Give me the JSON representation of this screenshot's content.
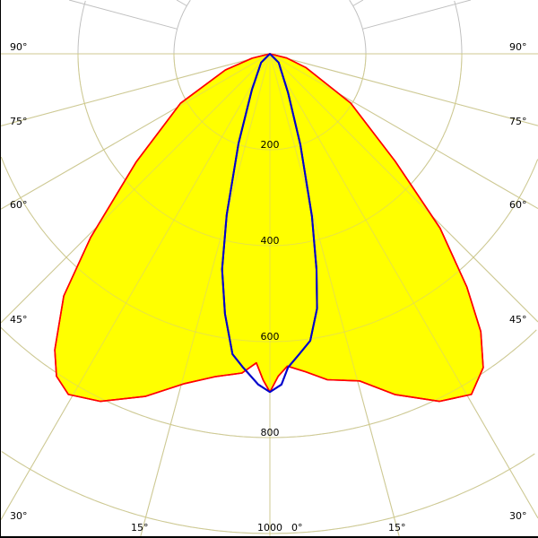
{
  "chart_data": {
    "type": "polar",
    "title": "",
    "radial_ticks": [
      200,
      400,
      600,
      800,
      1000
    ],
    "radial_tick_labels": [
      "200",
      "400",
      "600",
      "800",
      "1000"
    ],
    "rlim": [
      0,
      1000
    ],
    "angle_step_deg": 15,
    "angle_labels": [
      {
        "angle": -90,
        "label": "90°"
      },
      {
        "angle": 90,
        "label": "90°"
      },
      {
        "angle": -75,
        "label": "75°"
      },
      {
        "angle": 75,
        "label": "75°"
      },
      {
        "angle": -60,
        "label": "60°"
      },
      {
        "angle": 60,
        "label": "60°"
      },
      {
        "angle": -45,
        "label": "45°"
      },
      {
        "angle": 45,
        "label": "45°"
      },
      {
        "angle": -30,
        "label": "30°"
      },
      {
        "angle": 30,
        "label": "30°"
      },
      {
        "angle": -15,
        "label": "15°"
      },
      {
        "angle": 15,
        "label": "15°"
      },
      {
        "angle": 0,
        "label": "0°"
      }
    ],
    "grid": true,
    "colors": {
      "grid": "#c0c0c0",
      "fill": "#ffff00",
      "series_red": "#ff0000",
      "series_blue": "#0000cc"
    },
    "series": [
      {
        "color": "#ff0000",
        "filled": true,
        "points": [
          [
            -90,
            0
          ],
          [
            -76,
            38
          ],
          [
            -70,
            99
          ],
          [
            -61,
            213
          ],
          [
            -51,
            359
          ],
          [
            -44.3,
            535
          ],
          [
            -40.4,
            663
          ],
          [
            -36,
            763
          ],
          [
            -33.5,
            806
          ],
          [
            -30.6,
            825
          ],
          [
            -26,
            806
          ],
          [
            -20,
            760
          ],
          [
            -14.5,
            710
          ],
          [
            -9.5,
            682
          ],
          [
            -5,
            668
          ],
          [
            -2.5,
            645
          ],
          [
            -1.2,
            680
          ],
          [
            0,
            705
          ],
          [
            1.5,
            672
          ],
          [
            3.2,
            652
          ],
          [
            6.4,
            667
          ],
          [
            10,
            690
          ],
          [
            15.3,
            707
          ],
          [
            20.2,
            757
          ],
          [
            26,
            806
          ],
          [
            30.6,
            825
          ],
          [
            34.2,
            791
          ],
          [
            37.2,
            727
          ],
          [
            40.2,
            636
          ],
          [
            44.3,
            508
          ],
          [
            49.4,
            344
          ],
          [
            58.6,
            197
          ],
          [
            69,
            80
          ],
          [
            76,
            36
          ],
          [
            90,
            0
          ]
        ]
      },
      {
        "color": "#0000cc",
        "filled": false,
        "points": [
          [
            -90,
            0
          ],
          [
            -45,
            26
          ],
          [
            -26.6,
            84
          ],
          [
            -19.3,
            198
          ],
          [
            -15,
            348
          ],
          [
            -12.5,
            460
          ],
          [
            -9.8,
            550
          ],
          [
            -7.1,
            631
          ],
          [
            -4.9,
            656
          ],
          [
            -2,
            690
          ],
          [
            0,
            705
          ],
          [
            2,
            690
          ],
          [
            3.3,
            655
          ],
          [
            5.5,
            630
          ],
          [
            8,
            604
          ],
          [
            10.5,
            540
          ],
          [
            12.2,
            460
          ],
          [
            14.5,
            350
          ],
          [
            18.5,
            200
          ],
          [
            25,
            90
          ],
          [
            45,
            26
          ],
          [
            90,
            0
          ]
        ]
      }
    ]
  }
}
